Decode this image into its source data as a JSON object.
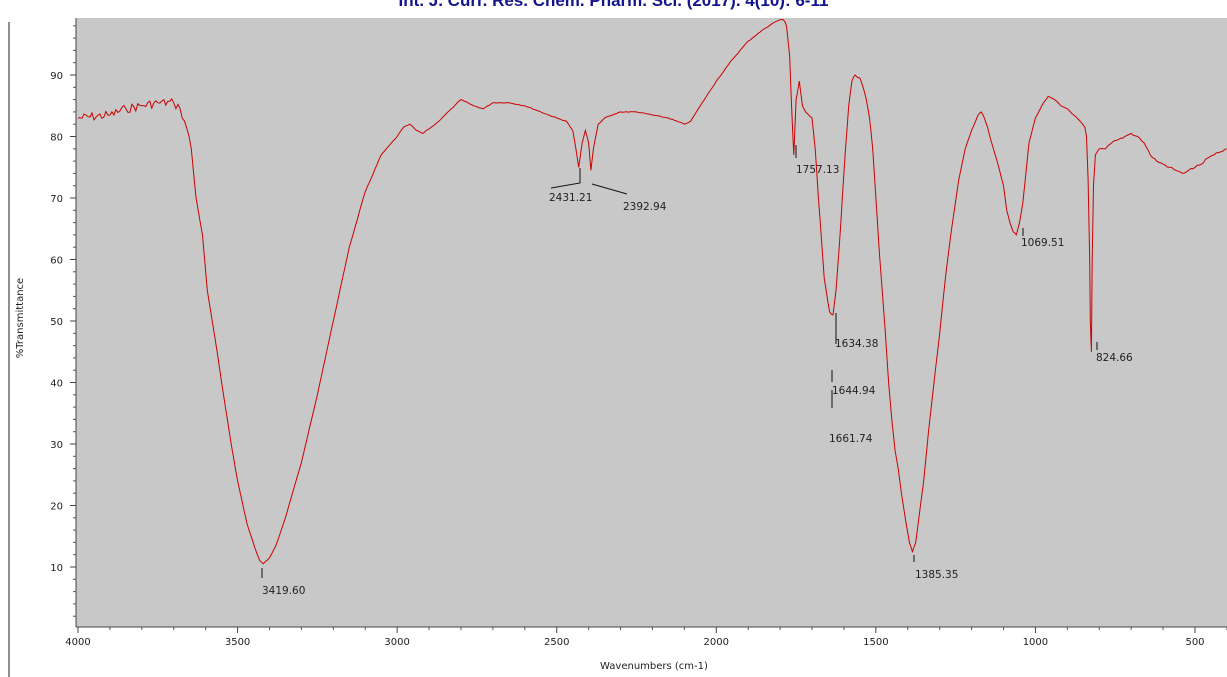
{
  "header": {
    "title": "Int. J. Curr. Res. Chem. Pharm. Sci. (2017). 4(10): 6-11"
  },
  "chart_data": {
    "type": "line",
    "title": "",
    "xlabel": "Wavenumbers (cm-1)",
    "ylabel": "%Transmittance",
    "xlim": [
      4000,
      400
    ],
    "ylim": [
      0,
      100
    ],
    "x_ticks": [
      4000,
      3500,
      3000,
      2500,
      2000,
      1500,
      1000,
      500
    ],
    "y_ticks": [
      10,
      20,
      30,
      40,
      50,
      60,
      70,
      80,
      90
    ],
    "grid": false,
    "series": [
      {
        "color": "#cc0000",
        "points": [
          [
            4000,
            83
          ],
          [
            3900,
            83.5
          ],
          [
            3850,
            84.5
          ],
          [
            3800,
            85
          ],
          [
            3750,
            85.5
          ],
          [
            3700,
            85.5
          ],
          [
            3680,
            84.5
          ],
          [
            3660,
            81.5
          ],
          [
            3645,
            78
          ],
          [
            3630,
            70
          ],
          [
            3610,
            64
          ],
          [
            3595,
            55
          ],
          [
            3570,
            47
          ],
          [
            3550,
            40
          ],
          [
            3520,
            30
          ],
          [
            3500,
            24
          ],
          [
            3470,
            17
          ],
          [
            3445,
            13
          ],
          [
            3430,
            11
          ],
          [
            3419.6,
            10.5
          ],
          [
            3400,
            11.5
          ],
          [
            3380,
            13.5
          ],
          [
            3350,
            18
          ],
          [
            3300,
            27
          ],
          [
            3250,
            38
          ],
          [
            3200,
            50
          ],
          [
            3150,
            62
          ],
          [
            3100,
            71
          ],
          [
            3050,
            77
          ],
          [
            3000,
            80
          ],
          [
            2980,
            81.5
          ],
          [
            2960,
            82
          ],
          [
            2940,
            81
          ],
          [
            2920,
            80.5
          ],
          [
            2880,
            82
          ],
          [
            2850,
            83.5
          ],
          [
            2820,
            85
          ],
          [
            2800,
            86
          ],
          [
            2760,
            85
          ],
          [
            2730,
            84.5
          ],
          [
            2700,
            85.5
          ],
          [
            2650,
            85.5
          ],
          [
            2600,
            85
          ],
          [
            2550,
            84
          ],
          [
            2500,
            83
          ],
          [
            2470,
            82.5
          ],
          [
            2450,
            81
          ],
          [
            2440,
            78
          ],
          [
            2431.21,
            75
          ],
          [
            2420,
            79
          ],
          [
            2410,
            81
          ],
          [
            2400,
            79
          ],
          [
            2392.94,
            74.5
          ],
          [
            2385,
            78
          ],
          [
            2370,
            82
          ],
          [
            2350,
            83
          ],
          [
            2300,
            84
          ],
          [
            2250,
            84
          ],
          [
            2200,
            83.5
          ],
          [
            2150,
            83
          ],
          [
            2100,
            82
          ],
          [
            2080,
            82.5
          ],
          [
            2050,
            85
          ],
          [
            2000,
            89
          ],
          [
            1950,
            92.5
          ],
          [
            1900,
            95.5
          ],
          [
            1850,
            97.5
          ],
          [
            1820,
            98.5
          ],
          [
            1800,
            99
          ],
          [
            1790,
            99
          ],
          [
            1780,
            98
          ],
          [
            1770,
            93
          ],
          [
            1765,
            86
          ],
          [
            1760,
            80
          ],
          [
            1757.13,
            77
          ],
          [
            1750,
            86
          ],
          [
            1740,
            89
          ],
          [
            1730,
            85
          ],
          [
            1720,
            84
          ],
          [
            1700,
            83
          ],
          [
            1690,
            78
          ],
          [
            1680,
            70
          ],
          [
            1670,
            63
          ],
          [
            1661.74,
            57
          ],
          [
            1650,
            53
          ],
          [
            1644.94,
            51.5
          ],
          [
            1634.38,
            51
          ],
          [
            1625,
            55
          ],
          [
            1615,
            62
          ],
          [
            1605,
            70
          ],
          [
            1595,
            78
          ],
          [
            1585,
            85
          ],
          [
            1575,
            89
          ],
          [
            1565,
            90
          ],
          [
            1550,
            89.5
          ],
          [
            1540,
            88
          ],
          [
            1530,
            86
          ],
          [
            1520,
            83
          ],
          [
            1510,
            78
          ],
          [
            1500,
            70
          ],
          [
            1490,
            62
          ],
          [
            1480,
            55
          ],
          [
            1470,
            48
          ],
          [
            1460,
            40
          ],
          [
            1450,
            34
          ],
          [
            1440,
            29
          ],
          [
            1430,
            26
          ],
          [
            1420,
            22
          ],
          [
            1405,
            17
          ],
          [
            1395,
            14
          ],
          [
            1385.35,
            12.5
          ],
          [
            1375,
            14
          ],
          [
            1365,
            18
          ],
          [
            1350,
            24
          ],
          [
            1335,
            32
          ],
          [
            1320,
            39
          ],
          [
            1300,
            48
          ],
          [
            1280,
            58
          ],
          [
            1260,
            66
          ],
          [
            1240,
            73
          ],
          [
            1220,
            78
          ],
          [
            1200,
            81
          ],
          [
            1180,
            83.5
          ],
          [
            1170,
            84
          ],
          [
            1160,
            83
          ],
          [
            1150,
            81.5
          ],
          [
            1140,
            79.5
          ],
          [
            1120,
            76
          ],
          [
            1100,
            72
          ],
          [
            1090,
            68
          ],
          [
            1080,
            66
          ],
          [
            1069.51,
            64.5
          ],
          [
            1060,
            64
          ],
          [
            1050,
            66
          ],
          [
            1040,
            69
          ],
          [
            1030,
            74
          ],
          [
            1020,
            79
          ],
          [
            1000,
            83
          ],
          [
            980,
            85
          ],
          [
            960,
            86.5
          ],
          [
            940,
            86
          ],
          [
            920,
            85
          ],
          [
            900,
            84.5
          ],
          [
            880,
            83.5
          ],
          [
            860,
            82.5
          ],
          [
            845,
            81.5
          ],
          [
            840,
            80
          ],
          [
            835,
            73
          ],
          [
            830,
            60
          ],
          [
            828,
            50
          ],
          [
            824.66,
            45
          ],
          [
            822,
            60
          ],
          [
            818,
            72
          ],
          [
            812,
            77
          ],
          [
            800,
            78
          ],
          [
            780,
            78
          ],
          [
            760,
            79
          ],
          [
            740,
            79.5
          ],
          [
            720,
            80
          ],
          [
            700,
            80.5
          ],
          [
            680,
            80
          ],
          [
            660,
            79
          ],
          [
            640,
            77
          ],
          [
            620,
            76
          ],
          [
            600,
            75.5
          ],
          [
            580,
            75
          ],
          [
            560,
            74.5
          ],
          [
            540,
            74
          ],
          [
            520,
            74.5
          ],
          [
            500,
            75
          ],
          [
            480,
            75.5
          ],
          [
            460,
            76.5
          ],
          [
            440,
            77
          ],
          [
            420,
            77.5
          ],
          [
            400,
            78
          ]
        ]
      }
    ],
    "annotations": [
      {
        "label": "3419.60",
        "x": 3419.6,
        "y": 10.5
      },
      {
        "label": "2431.21",
        "x": 2431.21,
        "y": 75
      },
      {
        "label": "2392.94",
        "x": 2392.94,
        "y": 74.5
      },
      {
        "label": "1757.13",
        "x": 1757.13,
        "y": 77
      },
      {
        "label": "1634.38",
        "x": 1634.38,
        "y": 51
      },
      {
        "label": "1644.94",
        "x": 1644.94,
        "y": 51.5
      },
      {
        "label": "1661.74",
        "x": 1661.74,
        "y": 57
      },
      {
        "label": "1385.35",
        "x": 1385.35,
        "y": 12.5
      },
      {
        "label": "1069.51",
        "x": 1069.51,
        "y": 64.5
      },
      {
        "label": "824.66",
        "x": 824.66,
        "y": 45
      }
    ]
  }
}
